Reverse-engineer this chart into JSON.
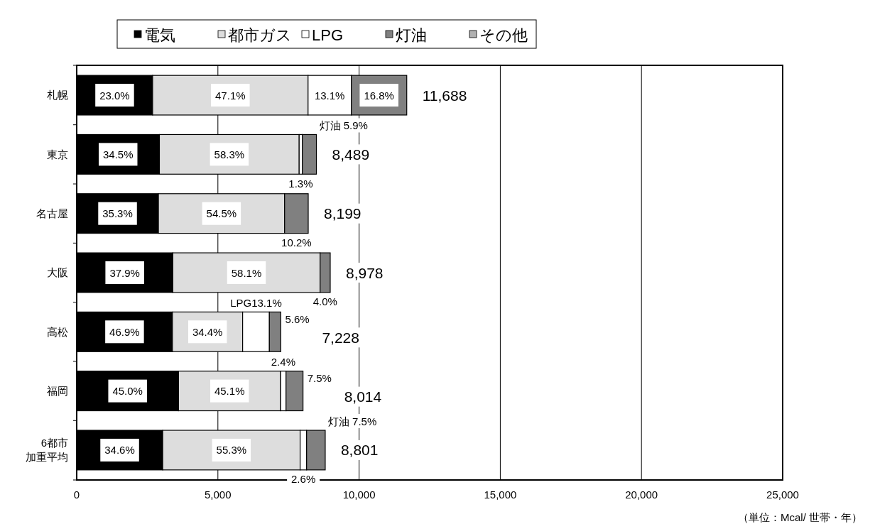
{
  "chart_data": {
    "type": "bar",
    "orientation": "horizontal",
    "stacked": true,
    "categories": [
      "札幌",
      "東京",
      "名古屋",
      "大阪",
      "高松",
      "福岡",
      "6都市加重平均"
    ],
    "series": [
      {
        "name": "電気",
        "color": "#000000",
        "values": [
          2688,
          2929,
          2894,
          3403,
          3390,
          3606,
          3045
        ]
      },
      {
        "name": "都市ガス",
        "color": "#dddddd",
        "values": [
          5505,
          4949,
          4468,
          5216,
          2486,
          3614,
          4867
        ]
      },
      {
        "name": "LPG",
        "color": "#ffffff",
        "values": [
          1531,
          110,
          0,
          0,
          947,
          192,
          229
        ]
      },
      {
        "name": "灯油",
        "color": "#808080",
        "values": [
          1964,
          501,
          837,
          359,
          405,
          602,
          660
        ]
      },
      {
        "name": "その他",
        "color": "#b0b0b0",
        "values": [
          0,
          0,
          0,
          0,
          0,
          0,
          0
        ]
      }
    ],
    "totals": [
      "11,688",
      "8,489",
      "8,199",
      "8,978",
      "7,228",
      "8,014",
      "8,801"
    ],
    "xlim": [
      0,
      25000
    ],
    "xticks": [
      {
        "value": 0,
        "label": "0"
      },
      {
        "value": 5000,
        "label": "5,000"
      },
      {
        "value": 10000,
        "label": "10,000"
      },
      {
        "value": 15000,
        "label": "15,000"
      },
      {
        "value": 20000,
        "label": "20,000"
      },
      {
        "value": 25000,
        "label": "25,000"
      }
    ],
    "grid": "x",
    "legend": "top",
    "annotations": [
      "23.0%",
      "47.1%",
      "13.1%",
      "16.8%",
      "34.5%",
      "58.3%",
      "1.3%",
      "灯油 5.9%",
      "35.3%",
      "54.5%",
      "10.2%",
      "37.9%",
      "58.1%",
      "4.0%",
      "46.9%",
      "34.4%",
      "LPG13.1%",
      "5.6%",
      "45.0%",
      "45.1%",
      "2.4%",
      "7.5%",
      "34.6%",
      "55.3%",
      "2.6%",
      "灯油 7.5%",
      "（単位：Mcal/ 世帯・年）"
    ]
  }
}
